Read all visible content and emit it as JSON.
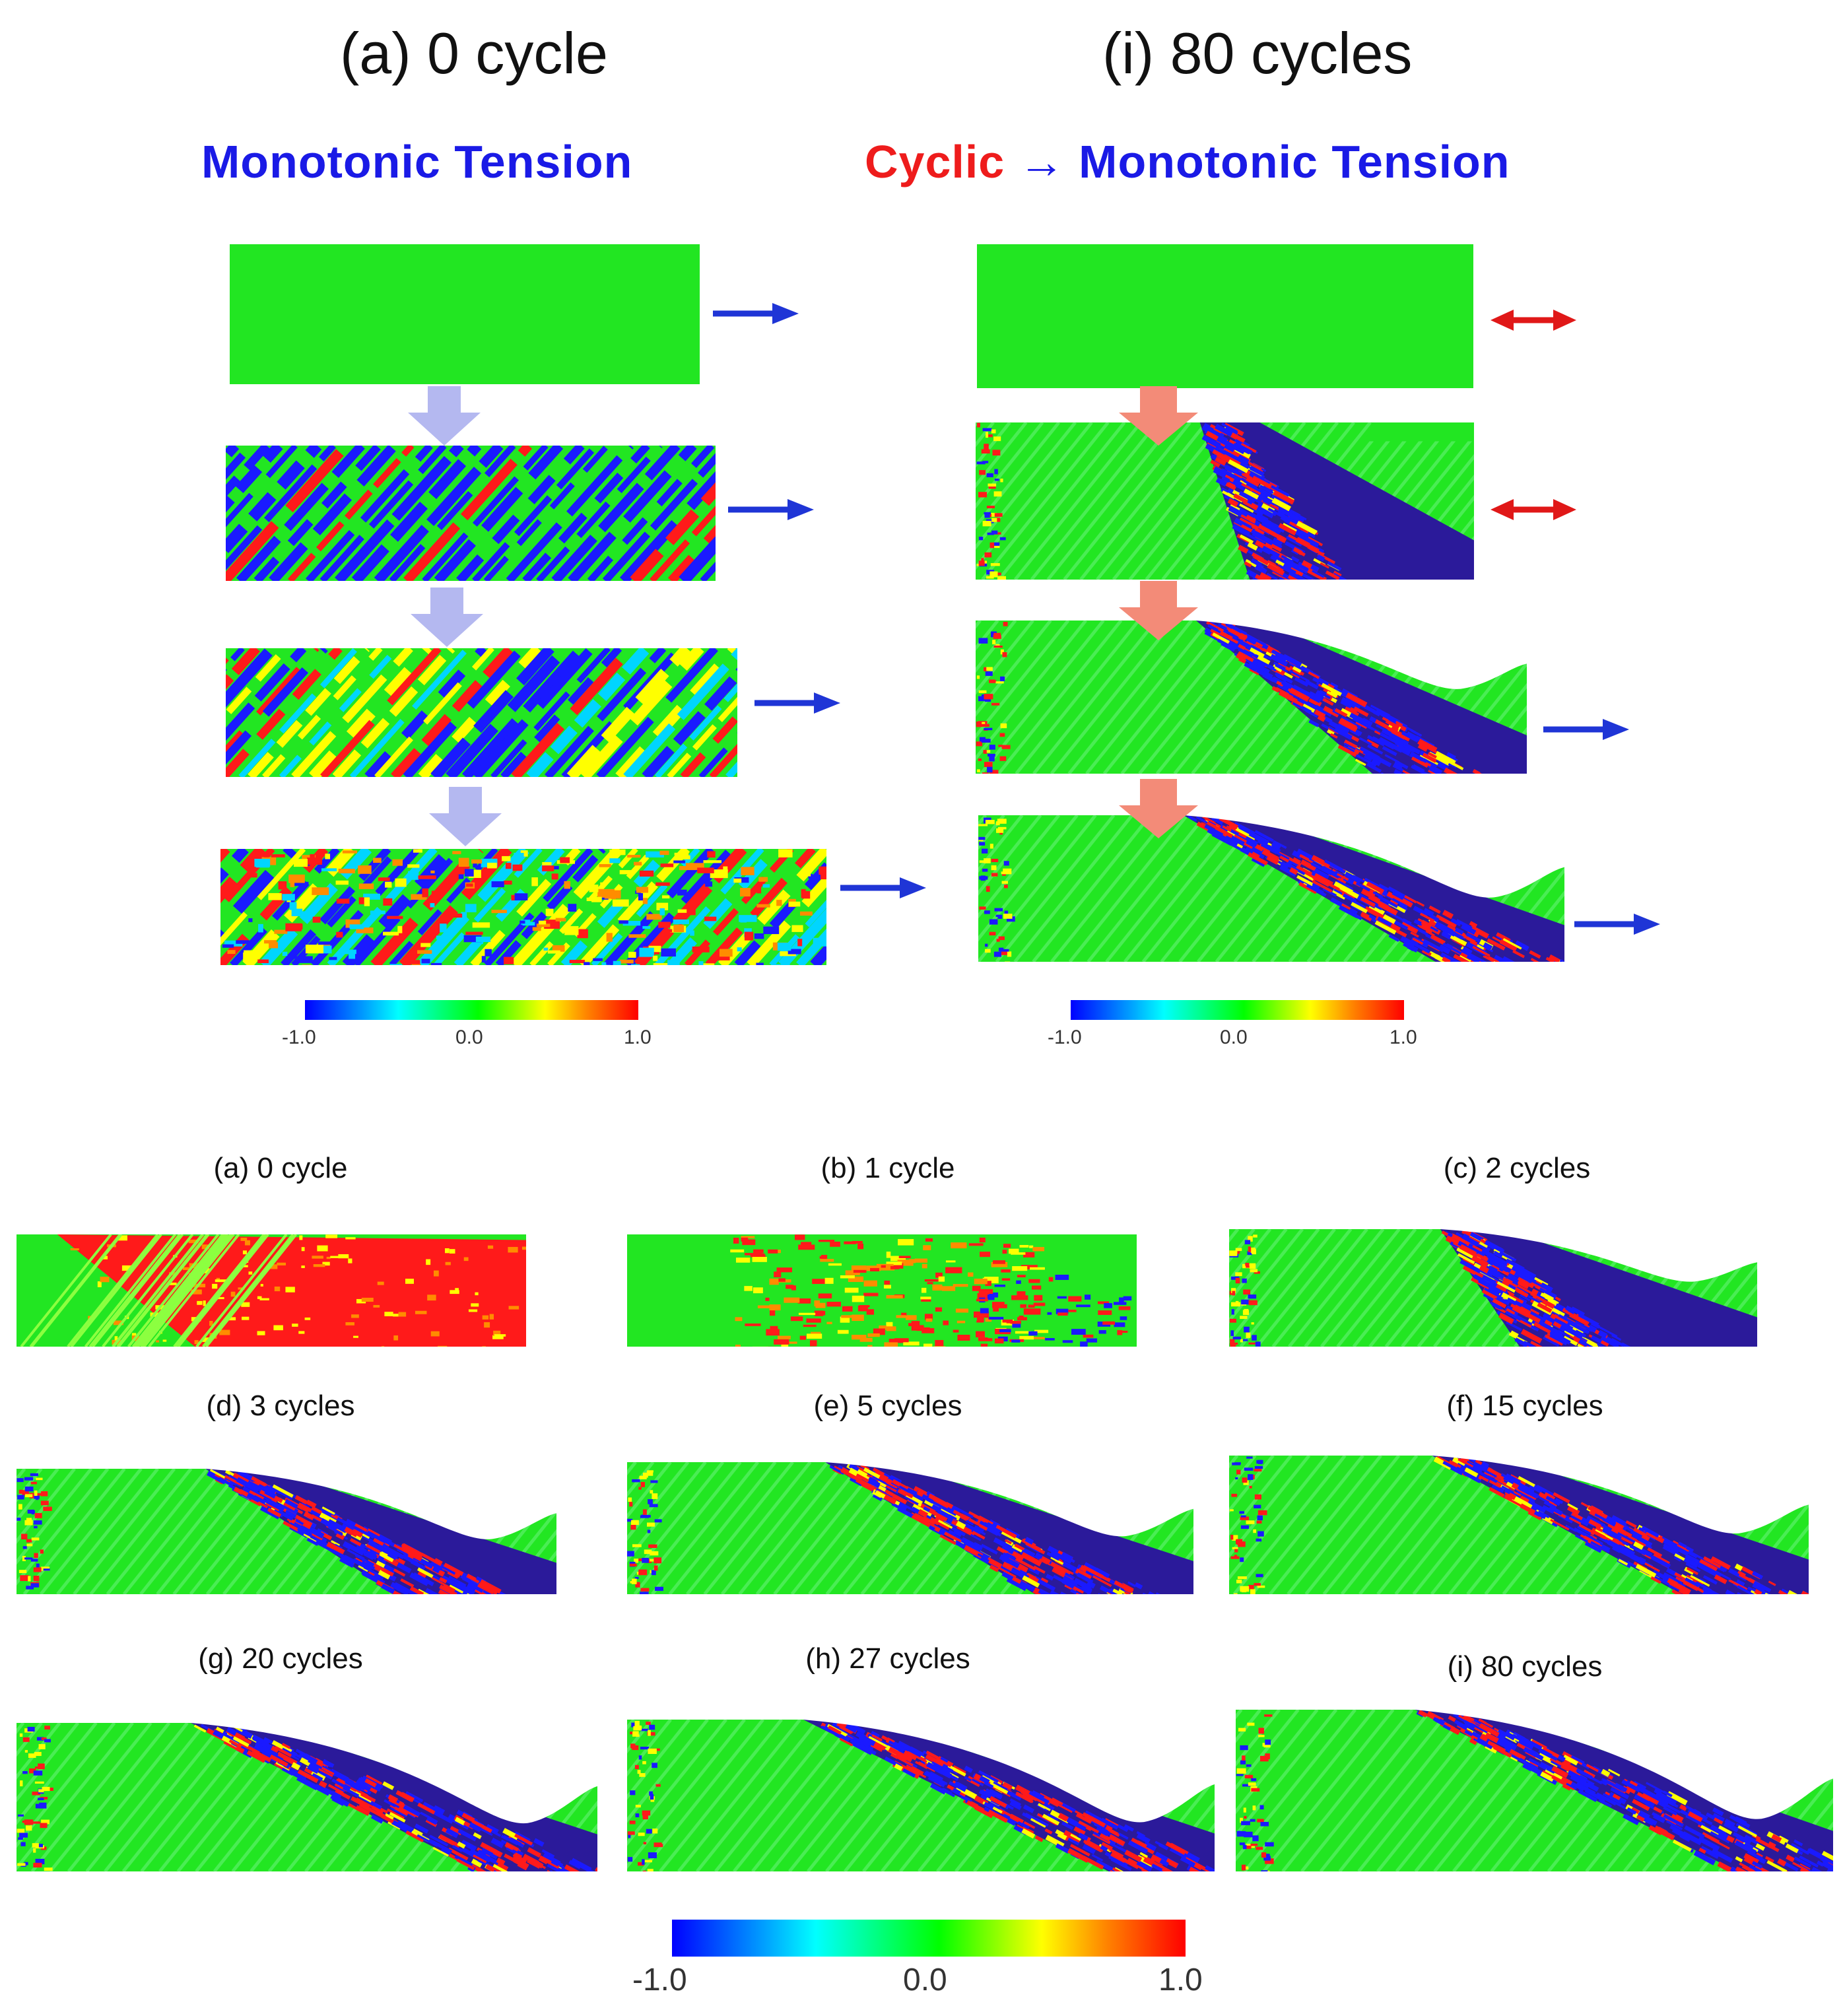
{
  "top": {
    "left_title": "(a) 0 cycle",
    "right_title": "(i) 80 cycles",
    "left_mode": "Monotonic Tension",
    "right_mode_cyclic": "Cyclic",
    "right_mode_arrow": "→",
    "right_mode_mono": "Monotonic Tension",
    "colorbar_labels": [
      "-1.0",
      "0.0",
      "1.0"
    ]
  },
  "bottom": {
    "captions": [
      "(a) 0 cycle",
      "(b) 1 cycle",
      "(c) 2 cycles",
      "(d) 3 cycles",
      "(e) 5 cycles",
      "(f) 15 cycles",
      "(g) 20 cycles",
      "(h) 27 cycles",
      "(i) 80 cycles"
    ],
    "colorbar_labels": [
      "-1.0",
      "0.0",
      "1.0"
    ]
  },
  "colors": {
    "blue_text": "#1a1ae6",
    "red_text": "#ee1c1c",
    "field_green": "#22e622",
    "monotonic_arrow": "#1f35d6",
    "cyclic_arrow": "#e01818",
    "step_arrow_left": "#b4b8f0",
    "step_arrow_right": "#f38b78"
  },
  "colormap": {
    "min": -1.0,
    "mid": 0.0,
    "max": 1.0
  }
}
